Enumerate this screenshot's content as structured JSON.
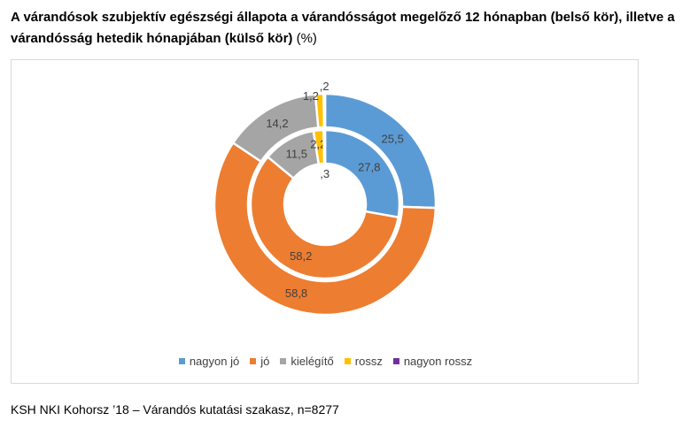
{
  "title": {
    "main": "A várandósok szubjektív egészségi állapota a várandósságot megelőző 12 hónapban (belső kör), illetve a várandósság hetedik hónapjában (külső kör)",
    "unit": " (%)"
  },
  "chart_data": {
    "type": "pie",
    "subtype": "doughnut",
    "categories": [
      "nagyon jó",
      "jó",
      "kielégítő",
      "rossz",
      "nagyon rossz"
    ],
    "colors": [
      "#5b9bd5",
      "#ed7d31",
      "#a5a5a5",
      "#ffc000",
      "#7030a0"
    ],
    "series": [
      {
        "name": "belső kör",
        "values": [
          27.8,
          58.2,
          11.5,
          2.2,
          0.3
        ],
        "labels": [
          "27,8",
          "58,2",
          "11,5",
          "2,2",
          ",3"
        ]
      },
      {
        "name": "külső kör",
        "values": [
          25.5,
          58.8,
          14.2,
          1.2,
          0.2
        ],
        "labels": [
          "25,5",
          "58,8",
          "14,2",
          "1,2",
          ",2"
        ]
      }
    ],
    "legend_position": "bottom"
  },
  "source": "KSH NKI Kohorsz ’18 – Várandós kutatási szakasz, n=8277"
}
